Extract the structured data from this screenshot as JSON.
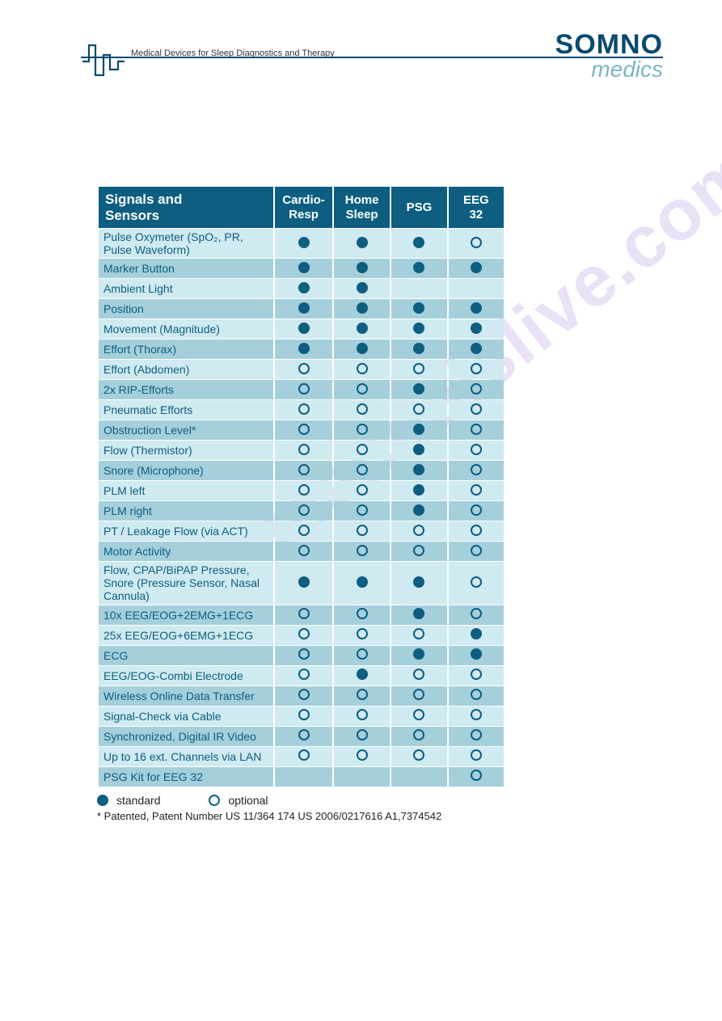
{
  "header": {
    "tagline": "Medical Devices for Sleep Diagnostics and Therapy",
    "brand_top": "SOMNO",
    "brand_bot": "medics"
  },
  "watermark": "manualslive.com",
  "table": {
    "title": "Signals and Sensors",
    "columns": [
      "Cardio-\nResp",
      "Home\nSleep",
      "PSG",
      "EEG\n32"
    ],
    "header_bg": "#0e5e81",
    "header_fg": "#ffffff",
    "row_colors": {
      "light": "#cfeaf0",
      "dark": "#a4cfdb"
    },
    "rows": [
      {
        "label": "Pulse Oxymeter (SpO₂, PR, Pulse Waveform)",
        "v": [
          "s",
          "s",
          "s",
          "o"
        ],
        "shade": "light"
      },
      {
        "label": "Marker Button",
        "v": [
          "s",
          "s",
          "s",
          "s"
        ],
        "shade": "dark"
      },
      {
        "label": "Ambient Light",
        "v": [
          "s",
          "s",
          "",
          ""
        ],
        "shade": "light"
      },
      {
        "label": "Position",
        "v": [
          "s",
          "s",
          "s",
          "s"
        ],
        "shade": "dark"
      },
      {
        "label": "Movement (Magnitude)",
        "v": [
          "s",
          "s",
          "s",
          "s"
        ],
        "shade": "light"
      },
      {
        "label": "Effort (Thorax)",
        "v": [
          "s",
          "s",
          "s",
          "s"
        ],
        "shade": "dark"
      },
      {
        "label": "Effort (Abdomen)",
        "v": [
          "o",
          "o",
          "o",
          "o"
        ],
        "shade": "light"
      },
      {
        "label": "2x RIP-Efforts",
        "v": [
          "o",
          "o",
          "s",
          "o"
        ],
        "shade": "dark"
      },
      {
        "label": "Pneumatic Efforts",
        "v": [
          "o",
          "o",
          "o",
          "o"
        ],
        "shade": "light"
      },
      {
        "label": "Obstruction Level*",
        "v": [
          "o",
          "o",
          "s",
          "o"
        ],
        "shade": "dark"
      },
      {
        "label": "Flow (Thermistor)",
        "v": [
          "o",
          "o",
          "s",
          "o"
        ],
        "shade": "light"
      },
      {
        "label": "Snore (Microphone)",
        "v": [
          "o",
          "o",
          "s",
          "o"
        ],
        "shade": "dark"
      },
      {
        "label": "PLM left",
        "v": [
          "o",
          "o",
          "s",
          "o"
        ],
        "shade": "light"
      },
      {
        "label": "PLM right",
        "v": [
          "o",
          "o",
          "s",
          "o"
        ],
        "shade": "dark"
      },
      {
        "label": "PT / Leakage Flow (via ACT)",
        "v": [
          "o",
          "o",
          "o",
          "o"
        ],
        "shade": "light"
      },
      {
        "label": "Motor Activity",
        "v": [
          "o",
          "o",
          "o",
          "o"
        ],
        "shade": "dark"
      },
      {
        "label": "Flow, CPAP/BiPAP Pressure, Snore (Pressure Sensor, Nasal Cannula)",
        "v": [
          "s",
          "s",
          "s",
          "o"
        ],
        "shade": "light"
      },
      {
        "label": "10x EEG/EOG+2EMG+1ECG",
        "v": [
          "o",
          "o",
          "s",
          "o"
        ],
        "shade": "dark"
      },
      {
        "label": "25x EEG/EOG+6EMG+1ECG",
        "v": [
          "o",
          "o",
          "o",
          "s"
        ],
        "shade": "light"
      },
      {
        "label": "ECG",
        "v": [
          "o",
          "o",
          "s",
          "s"
        ],
        "shade": "dark"
      },
      {
        "label": "EEG/EOG-Combi Electrode",
        "v": [
          "o",
          "s",
          "o",
          "o"
        ],
        "shade": "light"
      },
      {
        "label": "Wireless Online Data Transfer",
        "v": [
          "o",
          "o",
          "o",
          "o"
        ],
        "shade": "dark"
      },
      {
        "label": "Signal-Check via Cable",
        "v": [
          "o",
          "o",
          "o",
          "o"
        ],
        "shade": "light"
      },
      {
        "label": "Synchronized, Digital IR Video",
        "v": [
          "o",
          "o",
          "o",
          "o"
        ],
        "shade": "dark"
      },
      {
        "label": "Up to 16 ext. Channels via LAN",
        "v": [
          "o",
          "o",
          "o",
          "o"
        ],
        "shade": "light"
      },
      {
        "label": "PSG Kit for EEG 32",
        "v": [
          "",
          "",
          "",
          "o"
        ],
        "shade": "dark"
      }
    ]
  },
  "legend": {
    "standard": "standard",
    "optional": "optional"
  },
  "footnote": "* Patented, Patent Number US 11/364 174 US 2006/0217616 A1,7374542",
  "colors": {
    "brand_dark": "#094a6f",
    "brand_light": "#7bb6c9",
    "dot": "#0e5e81",
    "watermark": "#9a6fd4"
  }
}
